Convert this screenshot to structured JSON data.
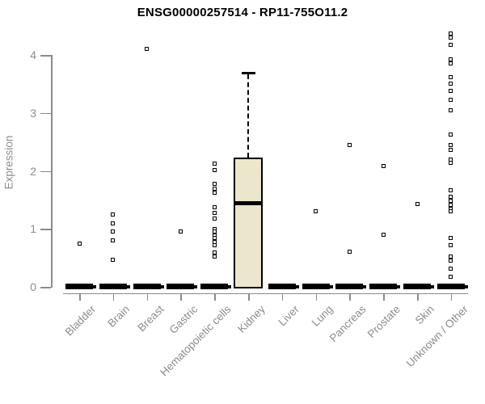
{
  "chart_data": {
    "type": "boxplot",
    "title": "ENSG00000257514 - RP11-755O11.2",
    "ylabel": "Expression",
    "ylim": [
      0,
      4.4
    ],
    "y_ticks": [
      0,
      1,
      2,
      3,
      4
    ],
    "grid": false,
    "legend": "none",
    "categories": [
      "Bladder",
      "Brain",
      "Breast",
      "Gastric",
      "Hematopoietic cells",
      "Kidney",
      "Liver",
      "Lung",
      "Pancreas",
      "Prostate",
      "Skin",
      "Unknown / Other"
    ],
    "series": [
      {
        "category": "Bladder",
        "box": {
          "q1": 0,
          "median": 0,
          "q3": 0,
          "whisker_low": 0,
          "whisker_high": 0
        },
        "outliers": [
          0.75
        ]
      },
      {
        "category": "Brain",
        "box": {
          "q1": 0,
          "median": 0,
          "q3": 0,
          "whisker_low": 0,
          "whisker_high": 0
        },
        "outliers": [
          1.25,
          1.1,
          0.95,
          0.8,
          0.46
        ]
      },
      {
        "category": "Breast",
        "box": {
          "q1": 0,
          "median": 0,
          "q3": 0,
          "whisker_low": 0,
          "whisker_high": 0
        },
        "outliers": [
          4.11
        ]
      },
      {
        "category": "Gastric",
        "box": {
          "q1": 0,
          "median": 0,
          "q3": 0,
          "whisker_low": 0,
          "whisker_high": 0
        },
        "outliers": [
          0.96
        ]
      },
      {
        "category": "Hematopoietic cells",
        "box": {
          "q1": 0,
          "median": 0,
          "q3": 0,
          "whisker_low": 0,
          "whisker_high": 0
        },
        "outliers": [
          2.12,
          2.01,
          1.78,
          1.7,
          1.63,
          1.37,
          1.28,
          1.18,
          1.0,
          0.95,
          0.89,
          0.84,
          0.78,
          0.72,
          0.59,
          0.52
        ]
      },
      {
        "category": "Kidney",
        "box": {
          "q1": 0,
          "median": 1.44,
          "q3": 2.23,
          "whisker_low": 0,
          "whisker_high": 3.69
        },
        "outliers": []
      },
      {
        "category": "Liver",
        "box": {
          "q1": 0,
          "median": 0,
          "q3": 0,
          "whisker_low": 0,
          "whisker_high": 0
        },
        "outliers": []
      },
      {
        "category": "Lung",
        "box": {
          "q1": 0,
          "median": 0,
          "q3": 0,
          "whisker_low": 0,
          "whisker_high": 0
        },
        "outliers": [
          1.3
        ]
      },
      {
        "category": "Pancreas",
        "box": {
          "q1": 0,
          "median": 0,
          "q3": 0,
          "whisker_low": 0,
          "whisker_high": 0
        },
        "outliers": [
          2.44,
          0.61
        ]
      },
      {
        "category": "Prostate",
        "box": {
          "q1": 0,
          "median": 0,
          "q3": 0,
          "whisker_low": 0,
          "whisker_high": 0
        },
        "outliers": [
          2.08,
          0.9
        ]
      },
      {
        "category": "Skin",
        "box": {
          "q1": 0,
          "median": 0,
          "q3": 0,
          "whisker_low": 0,
          "whisker_high": 0
        },
        "outliers": [
          1.43
        ]
      },
      {
        "category": "Unknown / Other",
        "box": {
          "q1": 0,
          "median": 0,
          "q3": 0,
          "whisker_low": 0,
          "whisker_high": 0
        },
        "outliers": [
          4.37,
          4.3,
          4.18,
          3.93,
          3.86,
          3.62,
          3.5,
          3.38,
          3.23,
          3.05,
          2.63,
          2.45,
          2.36,
          2.2,
          2.14,
          1.66,
          1.55,
          1.48,
          1.42,
          1.35,
          1.3,
          0.85,
          0.72,
          0.52,
          0.45,
          0.31,
          0.18
        ]
      }
    ],
    "colors": {
      "box_fill": "#ECE7CC",
      "box_border": "#000000",
      "median": "#000000",
      "point": "#000000",
      "axis": "#8a8a8a",
      "axis_text": "#8c8c8c",
      "title_text": "#000000",
      "background": "#ffffff"
    }
  }
}
